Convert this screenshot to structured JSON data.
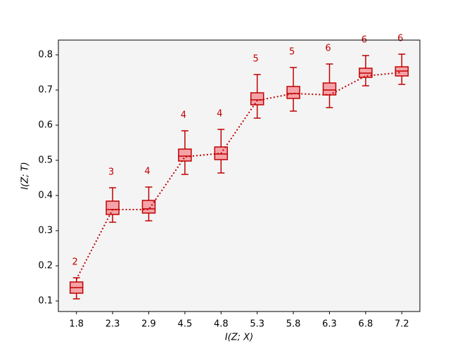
{
  "chart_data": {
    "type": "box",
    "xlabel": "I(Z; X)",
    "ylabel": "I(Z; T)",
    "categories": [
      "1.8",
      "2.3",
      "2.9",
      "4.5",
      "4.8",
      "5.3",
      "5.8",
      "6.3",
      "6.8",
      "7.2"
    ],
    "whislo": [
      0.106,
      0.324,
      0.328,
      0.46,
      0.464,
      0.62,
      0.64,
      0.65,
      0.712,
      0.716
    ],
    "q1": [
      0.122,
      0.346,
      0.35,
      0.498,
      0.502,
      0.658,
      0.676,
      0.686,
      0.736,
      0.74
    ],
    "med": [
      0.138,
      0.36,
      0.362,
      0.512,
      0.518,
      0.672,
      0.69,
      0.7,
      0.748,
      0.754
    ],
    "q3": [
      0.154,
      0.384,
      0.386,
      0.532,
      0.538,
      0.692,
      0.71,
      0.72,
      0.762,
      0.766
    ],
    "whishi": [
      0.166,
      0.422,
      0.424,
      0.584,
      0.588,
      0.744,
      0.764,
      0.774,
      0.798,
      0.802
    ],
    "line_values": [
      0.162,
      0.36,
      0.36,
      0.51,
      0.52,
      0.67,
      0.69,
      0.686,
      0.74,
      0.75
    ],
    "box_labels": [
      2,
      3,
      4,
      4,
      4,
      5,
      5,
      6,
      6,
      6
    ],
    "color": "#c00000",
    "fill": "#f4a3a8",
    "background": "#f4f4f4",
    "ylim": [
      0.07,
      0.842
    ],
    "yticks": [
      0.1,
      0.2,
      0.3,
      0.4,
      0.5,
      0.6,
      0.7,
      0.8
    ]
  }
}
